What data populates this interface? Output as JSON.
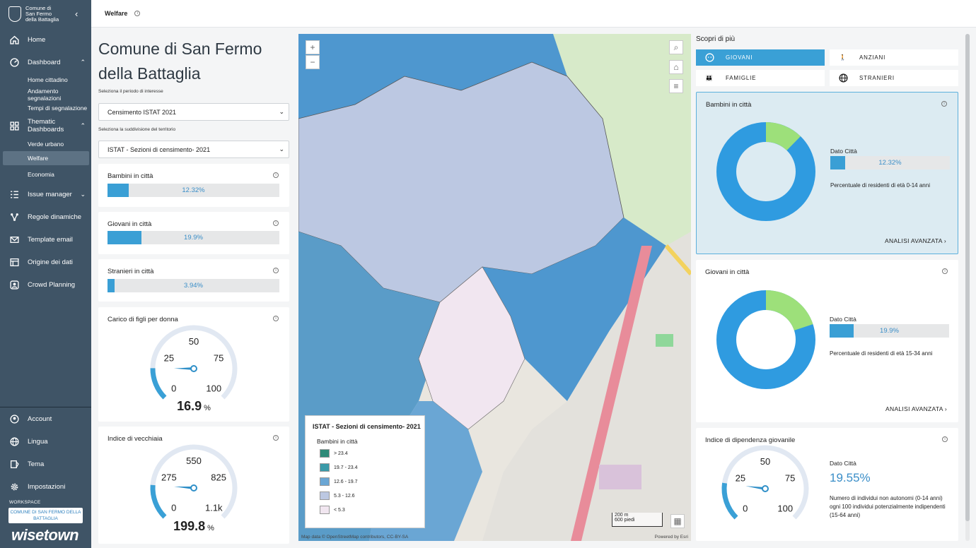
{
  "sidebar": {
    "logo_line1": "Comune di",
    "logo_line2": "San Fermo",
    "logo_line3": "della Battaglia",
    "collapse_icon": "chevron-left-icon",
    "items": [
      {
        "label": "Home",
        "icon": "home-icon"
      },
      {
        "label": "Dashboard",
        "icon": "dashboard-icon"
      },
      {
        "label": "Thematic Dashboards",
        "icon": "grid-icon"
      },
      {
        "label": "Issue manager",
        "icon": "list-check-icon"
      },
      {
        "label": "Regole dinamiche",
        "icon": "network-icon"
      },
      {
        "label": "Template email",
        "icon": "mail-icon"
      },
      {
        "label": "Origine dei dati",
        "icon": "database-icon"
      },
      {
        "label": "Crowd Planning",
        "icon": "crowd-icon"
      }
    ],
    "dashboard_sub": [
      "Home cittadino",
      "Andamento segnalazioni",
      "Tempi di segnalazione"
    ],
    "thematic_sub": [
      "Verde urbano",
      "Welfare",
      "Economia"
    ],
    "bottom_items": [
      {
        "label": "Account",
        "icon": "account-icon"
      },
      {
        "label": "Lingua",
        "icon": "globe-icon"
      },
      {
        "label": "Tema",
        "icon": "theme-icon"
      },
      {
        "label": "Impostazioni",
        "icon": "settings-icon"
      }
    ],
    "workspace_label": "WORKSPACE",
    "workspace_value": "COMUNE DI SAN FERMO DELLA BATTAGLIA",
    "brand": "wisetown"
  },
  "topbar": {
    "title": "Welfare"
  },
  "left": {
    "title": "Comune di San Fermo della Battaglia",
    "period_label": "Seleziona il periodo di interesse",
    "period_value": "Censimento ISTAT 2021",
    "subdiv_label": "Seleziona la suddivisione del territorio",
    "subdiv_value": "ISTAT - Sezioni di censimento- 2021",
    "kpis": [
      {
        "title": "Bambini in città",
        "value": "12.32%",
        "fraction": 0.1232
      },
      {
        "title": "Giovani in città",
        "value": "19.9%",
        "fraction": 0.199
      },
      {
        "title": "Stranieri in città",
        "value": "3.94%",
        "fraction": 0.0394
      }
    ],
    "gauge1": {
      "title": "Carico di figli per donna",
      "ticks": [
        "0",
        "25",
        "50",
        "75",
        "100"
      ],
      "value": "16.9",
      "unit": "%",
      "level": 0.169
    },
    "gauge2": {
      "title": "Indice di vecchiaia",
      "ticks": [
        "0",
        "275",
        "550",
        "825",
        "1.1k"
      ],
      "value": "199.8",
      "unit": "%",
      "level": 0.1816
    }
  },
  "map": {
    "zoom_in": "+",
    "zoom_out": "−",
    "legend_title": "ISTAT - Sezioni di censimento- 2021",
    "legend_sub": "Bambini in città",
    "legend_items": [
      {
        "label": "> 23.4",
        "color": "#2e8a78"
      },
      {
        "label": "19.7 - 23.4",
        "color": "#3a9aa8"
      },
      {
        "label": "12.6 - 19.7",
        "color": "#6aa6d4"
      },
      {
        "label": "5.3 - 12.6",
        "color": "#bcc8e2"
      },
      {
        "label": "< 5.3",
        "color": "#f1e6f0"
      }
    ],
    "scale_m": "200 m",
    "scale_ft": "600 piedi",
    "attribution": "Map data © OpenStreetMap contributors, CC-BY-SA",
    "powered": "Powered by Esri"
  },
  "right": {
    "scopri": "Scopri di più",
    "tabs": [
      {
        "label": "GIOVANI",
        "icon": "baby-icon"
      },
      {
        "label": "ANZIANI",
        "icon": "elder-icon"
      },
      {
        "label": "FAMIGLIE",
        "icon": "family-icon"
      },
      {
        "label": "STRANIERI",
        "icon": "globe-icon"
      }
    ],
    "card1": {
      "title": "Bambini in città",
      "dato": "Dato Città",
      "value": "12.32%",
      "fraction": 0.1232,
      "desc": "Percentuale di residenti di età 0-14 anni",
      "link": "ANALISI AVANZATA ›"
    },
    "card2": {
      "title": "Giovani in città",
      "dato": "Dato Città",
      "value": "19.9%",
      "fraction": 0.199,
      "desc": "Percentuale di residenti di età 15-34 anni",
      "link": "ANALISI AVANZATA ›"
    },
    "card3": {
      "title": "Indice di dipendenza giovanile",
      "dato": "Dato Città",
      "value": "19.55%",
      "desc": "Numero di individui non autonomi (0-14 anni) ogni 100 individui potenzialmente indipendenti (15-64 anni)",
      "ticks": [
        "0",
        "25",
        "50",
        "75",
        "100"
      ],
      "level": 0.1955
    }
  },
  "colors": {
    "accent": "#3aa0d6",
    "sidebar": "#3f5466",
    "donut_main": "#2f9be0",
    "donut_sub": "#9de07a"
  }
}
